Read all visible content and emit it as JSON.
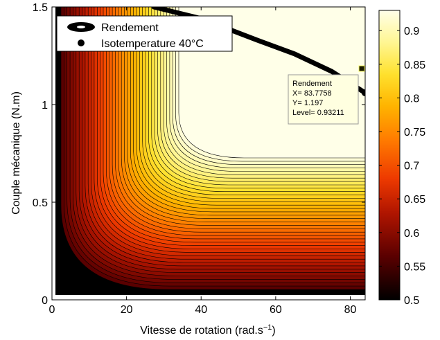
{
  "chart_data": {
    "type": "contour",
    "xlabel_base": "Vitesse de rotation (rad.s",
    "xlabel_sup": "−1",
    "xlabel_tail": ")",
    "ylabel": "Couple mécanique (N.m)",
    "xlim": [
      0,
      84
    ],
    "ylim": [
      0,
      1.5
    ],
    "xticks": [
      "0",
      "20",
      "40",
      "60",
      "80"
    ],
    "yticks": [
      "0",
      "0.5",
      "1",
      "1.5"
    ],
    "colorbar": {
      "range": [
        0.5,
        0.93
      ],
      "ticks": [
        "0.5",
        "0.55",
        "0.6",
        "0.65",
        "0.7",
        "0.75",
        "0.8",
        "0.85",
        "0.9"
      ]
    },
    "legend": {
      "position": "top-left",
      "entries": [
        {
          "label": "Rendement",
          "marker": "filled-contour"
        },
        {
          "label": "Isotemperature 40°C",
          "marker": "black-dot"
        }
      ]
    },
    "isotemperature_curve": [
      {
        "x": 27.3,
        "y": 1.5
      },
      {
        "x": 40,
        "y": 1.44
      },
      {
        "x": 55,
        "y": 1.33
      },
      {
        "x": 65,
        "y": 1.26
      },
      {
        "x": 75,
        "y": 1.17
      },
      {
        "x": 84,
        "y": 1.06
      }
    ],
    "datatip": {
      "title": "Rendement",
      "x_text": "X= 83.7758",
      "y_text": "Y= 1.197",
      "level_text": "Level= 0.93211",
      "x": 83.7758,
      "y": 1.197
    }
  }
}
